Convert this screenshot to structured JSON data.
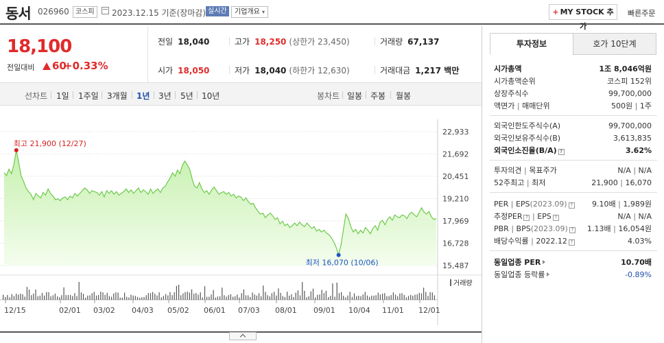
{
  "header": {
    "name": "동서",
    "code": "026960",
    "market": "코스피",
    "date_text": "2023.12.15  기준(장마감)",
    "realtime_badge": "실시간",
    "company_overview": "기업개요",
    "mystock_label": "MY STOCK 추가",
    "quick_order": "빠른주문"
  },
  "price": {
    "current": "18,100",
    "change_label": "전일대비",
    "change": "60",
    "change_pct": "+0.33%"
  },
  "stats": {
    "prev_close_label": "전일",
    "prev_close": "18,040",
    "high_label": "고가",
    "high": "18,250",
    "upper_limit": "(상한가 23,450)",
    "volume_label": "거래량",
    "volume": "67,137",
    "open_label": "시가",
    "open": "18,050",
    "low_label": "저가",
    "low": "18,040",
    "lower_limit": "(하한가 12,630)",
    "trade_value_label": "거래대금",
    "trade_value": "1,217 백만"
  },
  "toolbar": {
    "line_chart_label": "선차트",
    "periods": [
      "1일",
      "1주일",
      "3개월",
      "1년",
      "3년",
      "5년",
      "10년"
    ],
    "active_period": "1년",
    "candle_label": "봉차트",
    "candle_periods": [
      "일봉",
      "주봉",
      "월봉"
    ]
  },
  "chart_data": {
    "type": "area",
    "y_ticks": [
      "22,933",
      "21,692",
      "20,451",
      "19,210",
      "17,969",
      "16,728",
      "15,487"
    ],
    "ylim": [
      15487,
      22933
    ],
    "x_ticks": [
      "12/15",
      "02/01",
      "03/02",
      "04/03",
      "05/02",
      "06/01",
      "07/03",
      "08/01",
      "09/01",
      "10/04",
      "11/01",
      "12/01"
    ],
    "high_label": "최고 21,900 (12/27)",
    "low_label": "최저 16,070 (10/06)",
    "volume_label": "거래량",
    "colors": {
      "line": "#6cc94a",
      "fill_top": "#c6f0ae",
      "fill_bottom": "#f4fdee",
      "high": "#d61f1f",
      "low": "#1f55c8",
      "volume": "#555555"
    },
    "values": [
      20650,
      20500,
      20850,
      20600,
      21100,
      21900,
      21200,
      20450,
      20150,
      19800,
      19600,
      19450,
      19150,
      19500,
      19350,
      19250,
      19550,
      19400,
      19750,
      19500,
      19350,
      19150,
      19200,
      19100,
      19250,
      19300,
      19150,
      19350,
      19250,
      19500,
      19350,
      19500,
      19650,
      19800,
      19700,
      19500,
      19650,
      19600,
      19550,
      19400,
      19600,
      19300,
      19650,
      19500,
      19650,
      19450,
      19600,
      19400,
      19500,
      19600,
      19750,
      19550,
      19700,
      19500,
      19650,
      19800,
      19550,
      19700,
      19600,
      19450,
      19750,
      19500,
      19650,
      19750,
      19550,
      19800,
      19900,
      20150,
      20350,
      20650,
      20450,
      20800,
      20600,
      21050,
      21300,
      21100,
      20850,
      20300,
      19900,
      19800,
      20100,
      19750,
      19550,
      19650,
      19450,
      19700,
      19850,
      19650,
      19450,
      19550,
      19600,
      19450,
      19550,
      19350,
      19450,
      19250,
      19350,
      19300,
      19100,
      19250,
      19050,
      18900,
      18950,
      18700,
      18500,
      18350,
      18400,
      18150,
      18300,
      18400,
      18250,
      18050,
      18150,
      17800,
      17950,
      17700,
      17800,
      17600,
      17700,
      17850,
      17700,
      17900,
      17750,
      17650,
      17850,
      17700,
      17550,
      17650,
      17400,
      17500,
      17350,
      17450,
      17300,
      17200,
      17050,
      16800,
      16500,
      16070,
      16650,
      17500,
      18350,
      18100,
      17650,
      17350,
      17500,
      17250,
      17450,
      17300,
      17600,
      17450,
      17250,
      17550,
      17700,
      17450,
      17900,
      18000,
      17750,
      18050,
      18200,
      18000,
      18300,
      18200,
      18150,
      18300,
      18250,
      18100,
      18350,
      18450,
      18300,
      18200,
      18450,
      18700,
      18450,
      18350,
      18500,
      18200,
      18050,
      18100
    ]
  },
  "info": {
    "tab_active": "투자정보",
    "tab_other": "호가 10단계",
    "market_cap_label": "시가총액",
    "market_cap": "1조 8,046억원",
    "market_cap_rank_label": "시가총액순위",
    "market_cap_rank": "코스피 152위",
    "shares_label": "상장주식수",
    "shares": "99,700,000",
    "par_label": "액면가",
    "unit_label": "매매단위",
    "par_value": "500원",
    "unit_value": "1주",
    "foreign_limit_label": "외국인한도주식수(A)",
    "foreign_limit": "99,700,000",
    "foreign_held_label": "외국인보유주식수(B)",
    "foreign_held": "3,613,835",
    "foreign_ratio_label": "외국인소진율(B/A)",
    "foreign_ratio": "3.62%",
    "opinion_label": "투자의견",
    "target_label": "목표주가",
    "opinion_value": "N/A",
    "target_value": "N/A",
    "w52_high_label": "52주최고",
    "w52_low_label": "최저",
    "w52_high": "21,900",
    "w52_low": "16,070",
    "per_label": "PER",
    "eps_label": "EPS",
    "per_eps_period": "(2023.09)",
    "per_value": "9.10배",
    "eps_value": "1,989원",
    "est_per_label": "추정PER",
    "est_eps_label": "EPS",
    "est_per_value": "N/A",
    "est_eps_value": "N/A",
    "pbr_label": "PBR",
    "bps_label": "BPS",
    "pbr_bps_period": "(2023.09)",
    "pbr_value": "1.13배",
    "bps_value": "16,054원",
    "dividend_label": "배당수익률",
    "dividend_period": "2022.12",
    "dividend_value": "4.03%",
    "industry_per_label": "동일업종 PER",
    "industry_per": "10.70배",
    "industry_chg_label": "동일업종 등락률",
    "industry_chg": "-0.89%"
  }
}
